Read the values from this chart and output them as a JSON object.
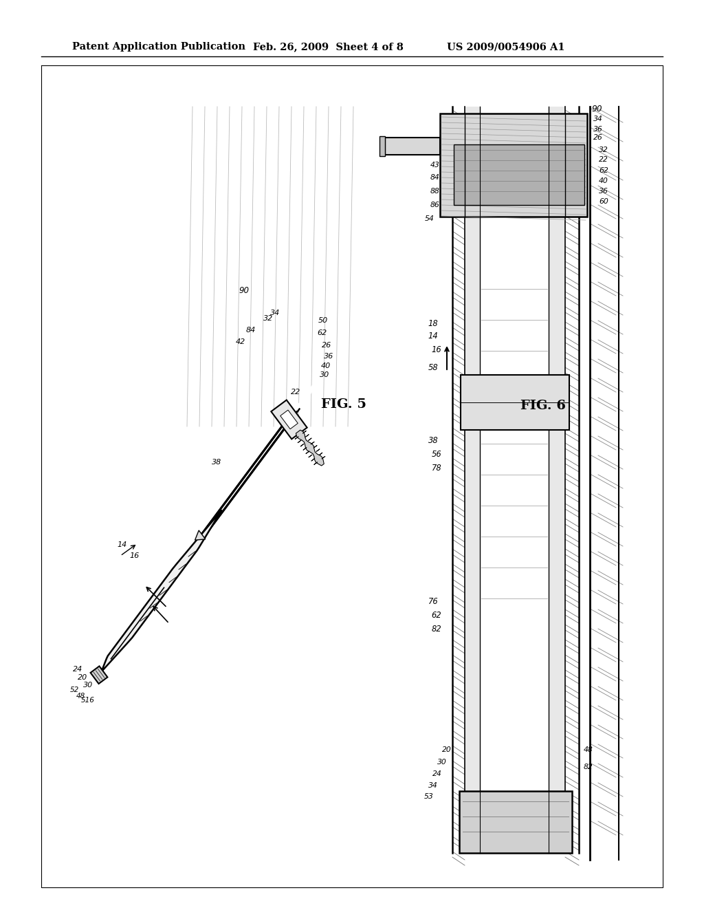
{
  "bg_color": "#ffffff",
  "header_left": "Patent Application Publication",
  "header_mid": "Feb. 26, 2009  Sheet 4 of 8",
  "header_right": "US 2009/0054906 A1",
  "fig5_label": "FIG. 5",
  "fig6_label": "FIG. 6",
  "header_font_size": 10.5,
  "fig_label_font_size": 14
}
